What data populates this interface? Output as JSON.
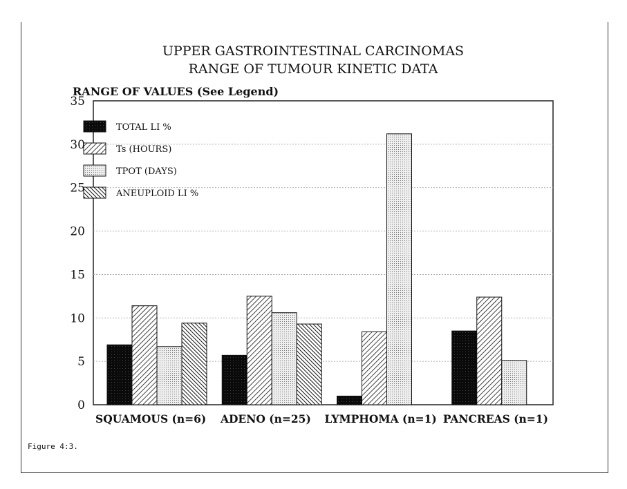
{
  "chart_data": {
    "type": "bar",
    "title": [
      "UPPER GASTROINTESTINAL CARCINOMAS",
      "RANGE OF TUMOUR KINETIC DATA"
    ],
    "ylabel": "RANGE OF VALUES (See Legend)",
    "xlabel": "",
    "ylim": [
      0,
      35
    ],
    "yticks": [
      0,
      5,
      10,
      15,
      20,
      25,
      30,
      35
    ],
    "grid": true,
    "legend_position": "top-left",
    "categories": [
      "SQUAMOUS (n=6)",
      "ADENO (n=25)",
      "LYMPHOMA (n=1)",
      "PANCREAS (n=1)"
    ],
    "series": [
      {
        "name": "TOTAL LI %",
        "values": [
          6.9,
          5.7,
          1.0,
          8.5
        ]
      },
      {
        "name": "Ts (HOURS)",
        "values": [
          11.4,
          12.5,
          8.4,
          12.4
        ]
      },
      {
        "name": "TPOT (DAYS)",
        "values": [
          6.7,
          10.6,
          31.2,
          5.1
        ]
      },
      {
        "name": "ANEUPLOID LI %",
        "values": [
          9.4,
          9.3,
          null,
          null
        ]
      }
    ]
  },
  "caption": "Figure 4:3."
}
